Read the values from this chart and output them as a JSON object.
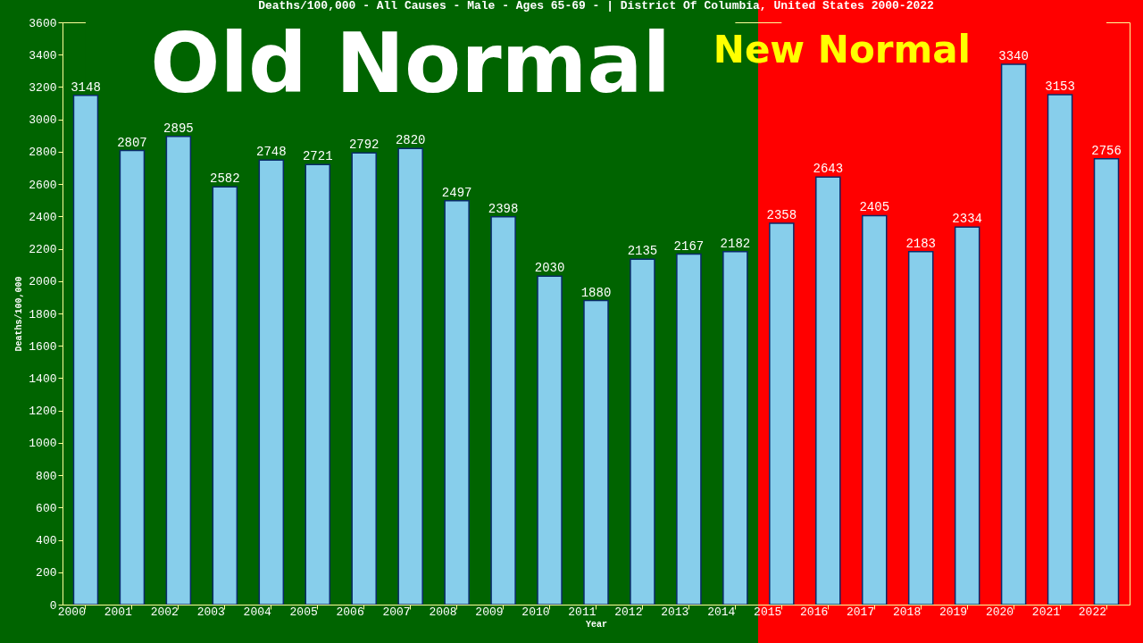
{
  "chart_data": {
    "type": "bar",
    "title": "Deaths/100,000 - All Causes - Male - Ages 65-69 -  | District Of Columbia, United States 2000-2022",
    "xlabel": "Year",
    "ylabel": "Deaths/100,000",
    "categories": [
      "2000",
      "2001",
      "2002",
      "2003",
      "2004",
      "2005",
      "2006",
      "2007",
      "2008",
      "2009",
      "2010",
      "2011",
      "2012",
      "2013",
      "2014",
      "2015",
      "2016",
      "2017",
      "2018",
      "2019",
      "2020",
      "2021",
      "2022"
    ],
    "values": [
      3148,
      2807,
      2895,
      2582,
      2748,
      2721,
      2792,
      2820,
      2497,
      2398,
      2030,
      1880,
      2135,
      2167,
      2182,
      2358,
      2643,
      2405,
      2183,
      2334,
      3340,
      3153,
      2756
    ],
    "color": "#87ceeb",
    "ylim": [
      0,
      3600
    ],
    "yticks": [
      0,
      200,
      400,
      600,
      800,
      1000,
      1200,
      1400,
      1600,
      1800,
      2000,
      2200,
      2400,
      2600,
      2800,
      3000,
      3200,
      3400,
      3600
    ],
    "data_labels": true,
    "bands": [
      {
        "axis": "x",
        "from": "2000",
        "to": "2014",
        "label": "Old Normal",
        "color": "#006400"
      },
      {
        "axis": "x",
        "from": "2015",
        "to": "2022",
        "label": "New Normal",
        "color": "#ff0000"
      }
    ]
  }
}
